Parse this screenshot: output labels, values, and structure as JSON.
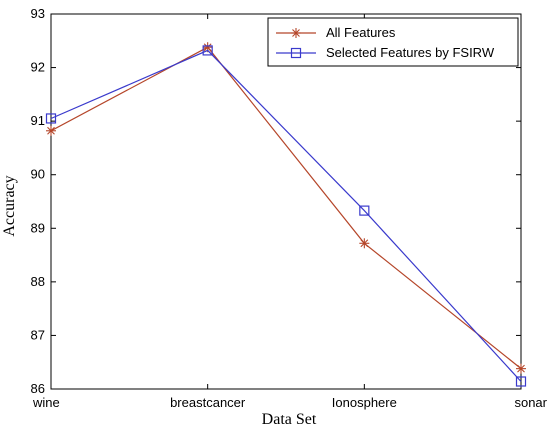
{
  "chart_data": {
    "type": "line",
    "title": "",
    "xlabel": "Data Set",
    "ylabel": "Accuracy",
    "categories": [
      "wine",
      "breastcancer",
      "Ionosphere",
      "sonar"
    ],
    "ylim": [
      86,
      93
    ],
    "yticks": [
      86,
      87,
      88,
      89,
      90,
      91,
      92,
      93
    ],
    "grid": false,
    "legend_position": "top-right",
    "series": [
      {
        "name": "All Features",
        "values": [
          90.82,
          92.38,
          88.72,
          86.38
        ],
        "color": "#b5462a",
        "marker": "asterisk"
      },
      {
        "name": "Selected Features by FSIRW",
        "values": [
          91.05,
          92.32,
          89.33,
          86.14
        ],
        "color": "#3a3acc",
        "marker": "square"
      }
    ]
  }
}
